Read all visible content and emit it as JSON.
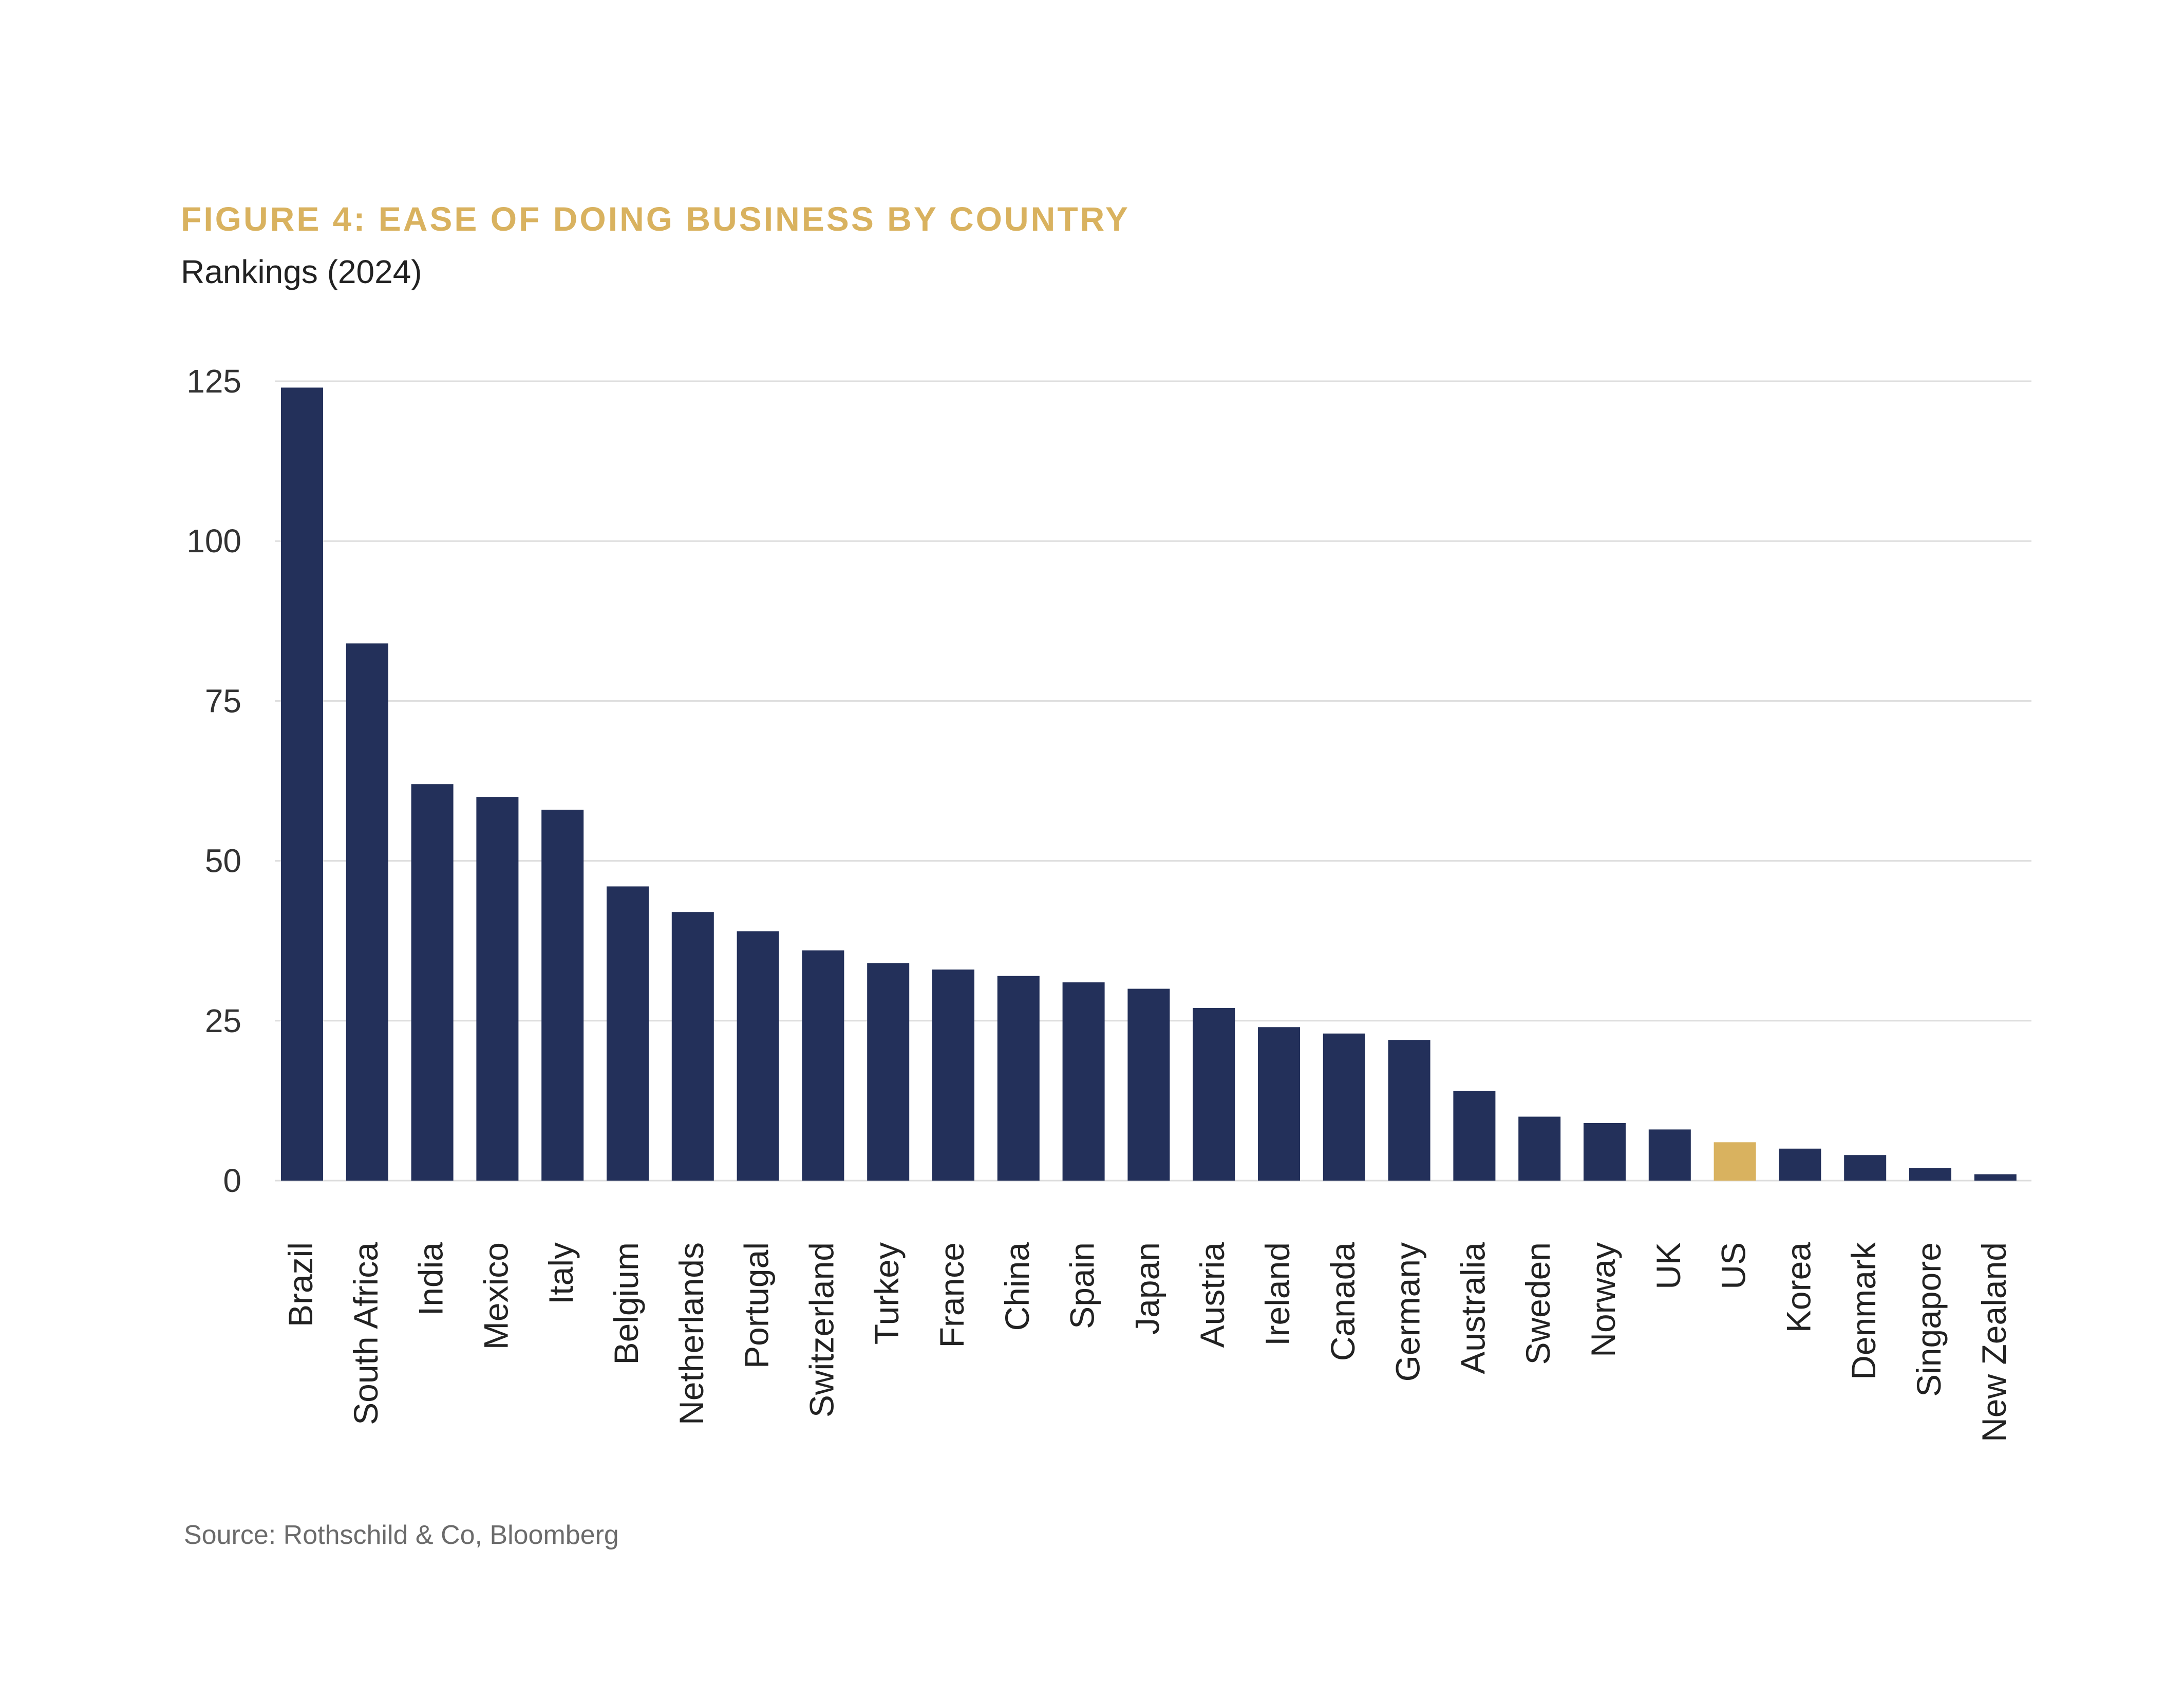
{
  "colors": {
    "bar": "#23305a",
    "highlight": "#d9b25f",
    "grid": "#dddddd",
    "title": "#d9b25f"
  },
  "chart_data": {
    "type": "bar",
    "title": "FIGURE 4: EASE OF DOING BUSINESS BY COUNTRY",
    "subtitle": "Rankings (2024)",
    "source": "Source: Rothschild & Co, Bloomberg",
    "xlabel": "",
    "ylabel": "",
    "ylim": [
      0,
      125
    ],
    "yticks": [
      0,
      25,
      50,
      75,
      100,
      125
    ],
    "grid": true,
    "highlight_category": "US",
    "categories": [
      "Brazil",
      "South Africa",
      "India",
      "Mexico",
      "Italy",
      "Belgium",
      "Netherlands",
      "Portugal",
      "Switzerland",
      "Turkey",
      "France",
      "China",
      "Spain",
      "Japan",
      "Austria",
      "Ireland",
      "Canada",
      "Germany",
      "Australia",
      "Sweden",
      "Norway",
      "UK",
      "US",
      "Korea",
      "Denmark",
      "Singapore",
      "New Zealand"
    ],
    "values": [
      124,
      84,
      62,
      60,
      58,
      46,
      42,
      39,
      36,
      34,
      33,
      32,
      31,
      30,
      27,
      24,
      23,
      22,
      14,
      10,
      9,
      8,
      6,
      5,
      4,
      2,
      1
    ]
  }
}
